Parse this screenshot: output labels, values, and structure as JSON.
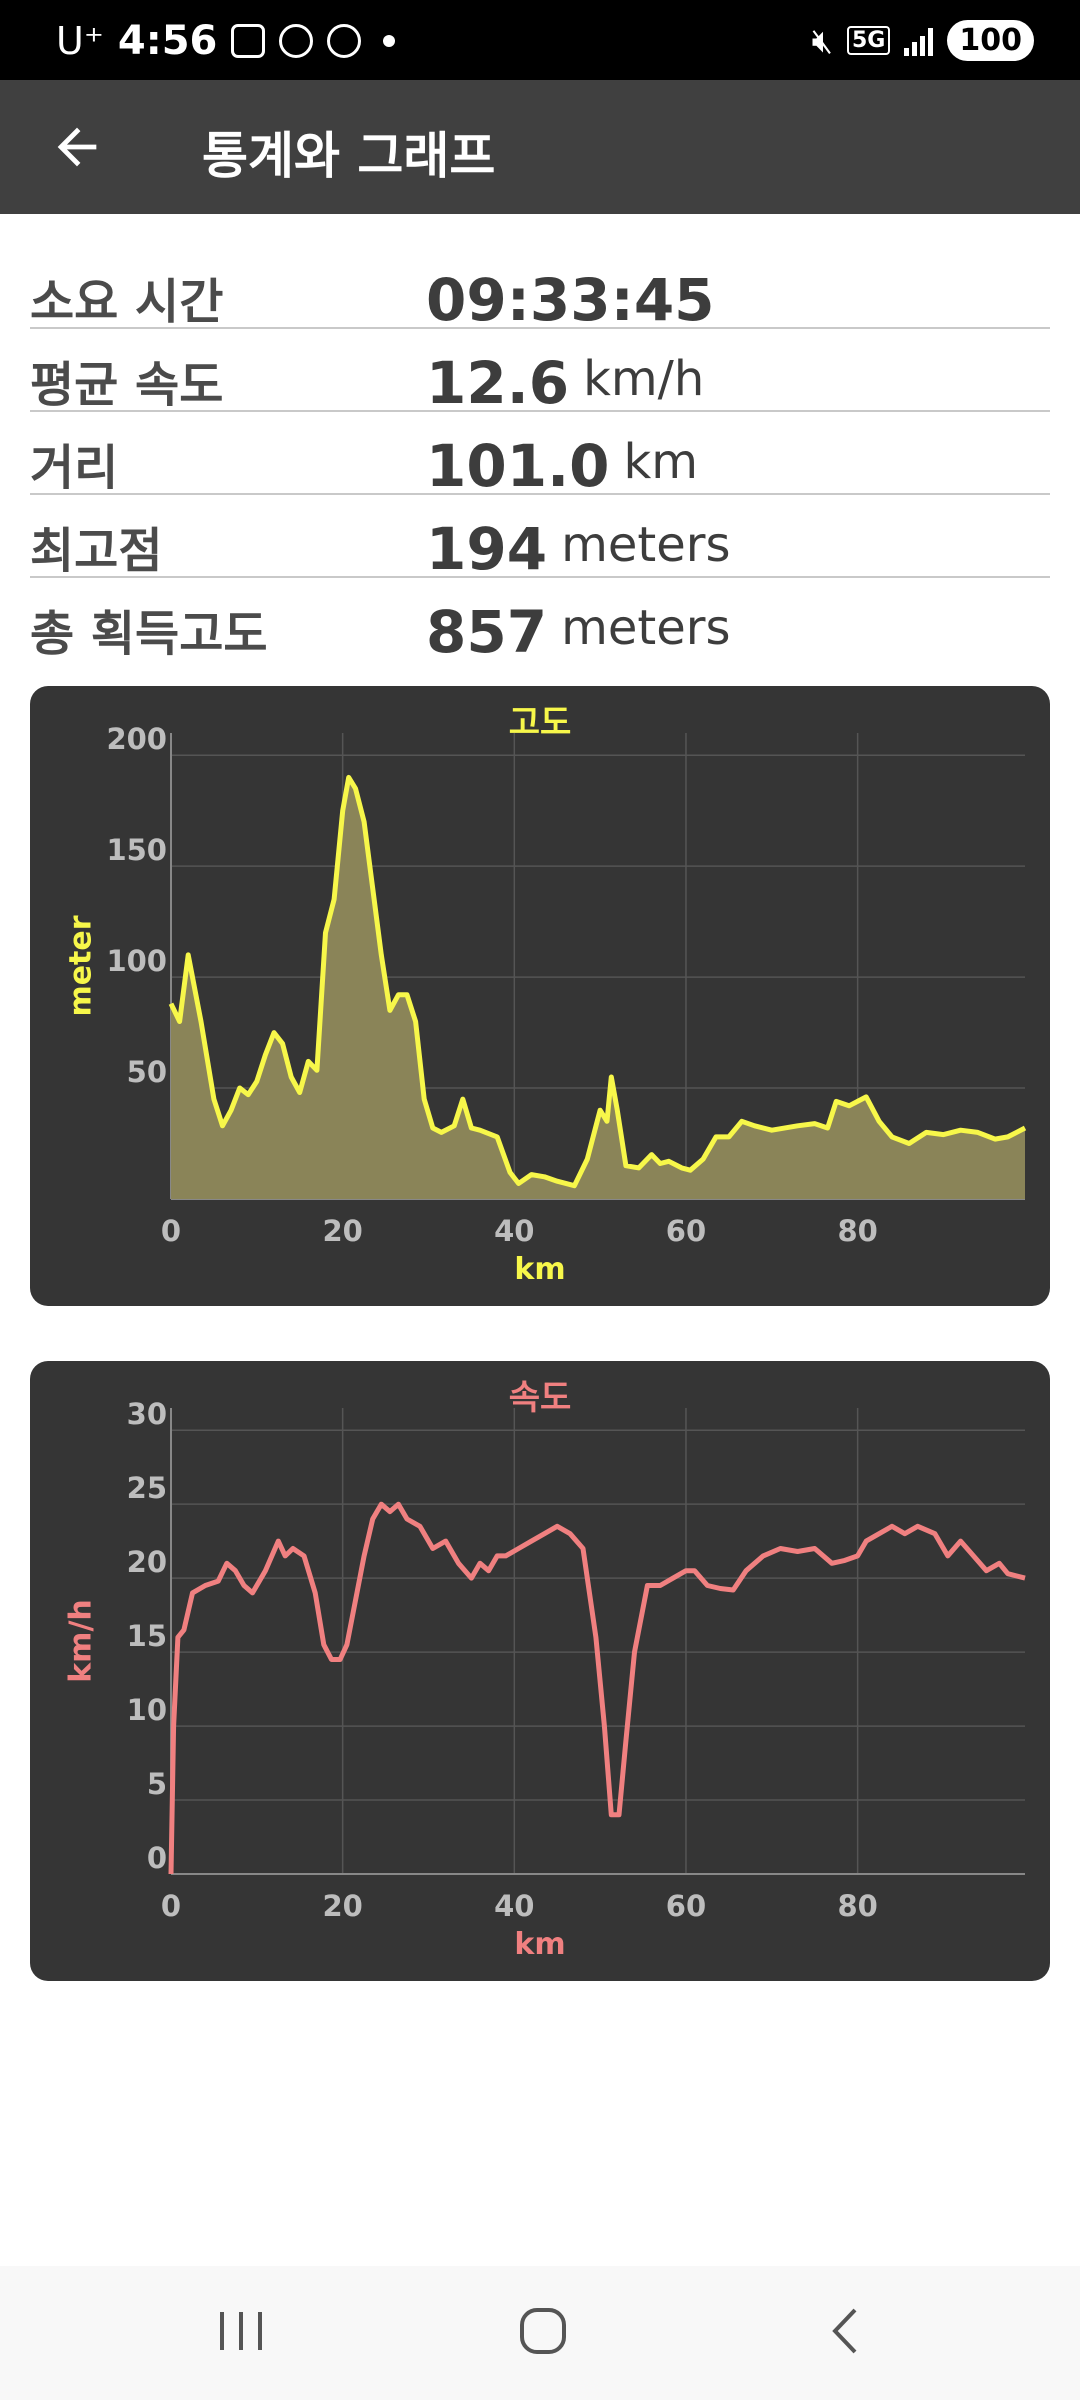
{
  "status_bar": {
    "carrier": "U⁺",
    "time": "4:56",
    "network": "5G",
    "battery": "100",
    "left_icons": [
      "camera-icon",
      "map-pin-icon",
      "shoe-icon"
    ],
    "right_icons": [
      "mute-icon",
      "5g-icon",
      "signal-icon",
      "battery-icon"
    ]
  },
  "app_bar": {
    "title": "통계와 그래프",
    "back_icon": "back-arrow-icon"
  },
  "stats": [
    {
      "label": "소요 시간",
      "value": "09:33:45",
      "unit": ""
    },
    {
      "label": "평균 속도",
      "value": "12.6",
      "unit": "km/h"
    },
    {
      "label": "거리",
      "value": "101.0",
      "unit": "km"
    },
    {
      "label": "최고점",
      "value": "194",
      "unit": "meters"
    },
    {
      "label": "총 획득고도",
      "value": "857",
      "unit": "meters"
    }
  ],
  "chart_data": [
    {
      "type": "area",
      "title": "고도",
      "xlabel": "km",
      "ylabel": "meter",
      "color": "#f7f74a",
      "fill": "#8a8458",
      "xlim": [
        0,
        99.5
      ],
      "ylim": [
        0,
        210
      ],
      "xticks": [
        0,
        20,
        40,
        60,
        80
      ],
      "yticks": [
        50,
        100,
        150,
        200
      ],
      "grid": true,
      "x": [
        0,
        1,
        2,
        3.5,
        5,
        6,
        7,
        8,
        9,
        10,
        11,
        12,
        13,
        14,
        15,
        16,
        17,
        18,
        19,
        20,
        20.7,
        21.5,
        22.5,
        23.5,
        24.5,
        25.5,
        26.5,
        27.5,
        28.5,
        29.5,
        30.5,
        31.5,
        33,
        34,
        35,
        36,
        38,
        39.5,
        40.5,
        42,
        43.5,
        45,
        47,
        48.5,
        50,
        50.8,
        51.3,
        52,
        53,
        54.5,
        56,
        57,
        58,
        59.5,
        60.5,
        62,
        63.5,
        65,
        66.5,
        68,
        70,
        73,
        75,
        76.5,
        77.5,
        79,
        80,
        81,
        82.5,
        84,
        86,
        88,
        90,
        92,
        94,
        96,
        97.5,
        99.5
      ],
      "y": [
        88,
        80,
        110,
        80,
        45,
        33,
        40,
        50,
        47,
        53,
        65,
        75,
        70,
        55,
        48,
        62,
        58,
        120,
        135,
        175,
        190,
        185,
        170,
        140,
        110,
        85,
        92,
        92,
        80,
        45,
        32,
        30,
        33,
        45,
        32,
        31,
        28,
        12,
        7,
        11,
        10,
        8,
        6,
        18,
        40,
        35,
        55,
        40,
        15,
        14,
        20,
        16,
        17,
        14,
        13,
        18,
        28,
        28,
        35,
        33,
        31,
        33,
        34,
        32,
        44,
        42,
        44,
        46,
        35,
        28,
        25,
        30,
        29,
        31,
        30,
        27,
        28,
        32
      ]
    },
    {
      "type": "line",
      "title": "속도",
      "xlabel": "km",
      "ylabel": "km/h",
      "color": "#f08080",
      "xlim": [
        0,
        99.5
      ],
      "ylim": [
        0,
        31.5
      ],
      "xticks": [
        0,
        20,
        40,
        60,
        80
      ],
      "yticks": [
        0,
        5,
        10,
        15,
        20,
        25,
        30
      ],
      "grid": true,
      "x": [
        0,
        0.3,
        0.8,
        1.5,
        2.5,
        4,
        5.5,
        6.5,
        7.5,
        8.5,
        9.5,
        11,
        12.5,
        13.3,
        14.2,
        15.5,
        16.8,
        17.8,
        18.7,
        19.7,
        20.5,
        21.5,
        22.5,
        23.5,
        24.5,
        25.5,
        26.5,
        27.5,
        29,
        30.5,
        32,
        33.5,
        35,
        36,
        37,
        38,
        39,
        40.5,
        42,
        43.5,
        45,
        46.5,
        48,
        49.5,
        50.5,
        51.3,
        52.2,
        53,
        54,
        55.5,
        57,
        58.5,
        60,
        61,
        62.5,
        64,
        65.5,
        67,
        69,
        71,
        73,
        75,
        77,
        78.5,
        80,
        81,
        82.5,
        84,
        85.5,
        87,
        89,
        90.5,
        92,
        93.5,
        95,
        96.5,
        97.5,
        99.5
      ],
      "y": [
        0,
        10,
        16,
        16.5,
        19,
        19.5,
        19.8,
        21,
        20.5,
        19.5,
        19,
        20.5,
        22.5,
        21.5,
        22,
        21.5,
        19,
        15.5,
        14.5,
        14.5,
        15.5,
        18.5,
        21.5,
        24,
        25,
        24.5,
        25,
        24,
        23.5,
        22,
        22.5,
        21,
        20,
        21,
        20.5,
        21.5,
        21.5,
        22,
        22.5,
        23,
        23.5,
        23,
        22,
        16,
        10,
        4,
        4,
        9,
        15,
        19.5,
        19.5,
        20,
        20.5,
        20.5,
        19.5,
        19.3,
        19.2,
        20.5,
        21.5,
        22,
        21.8,
        22,
        21,
        21.2,
        21.5,
        22.5,
        23,
        23.5,
        23,
        23.5,
        23,
        21.5,
        22.5,
        21.5,
        20.5,
        21,
        20.3,
        20
      ]
    }
  ]
}
